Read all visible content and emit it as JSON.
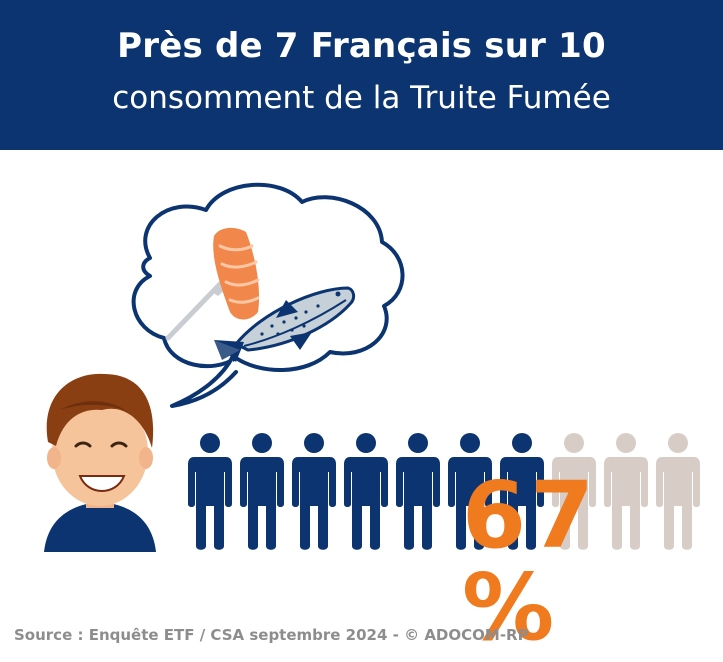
{
  "header": {
    "title": "Près de 7 Français sur 10",
    "subtitle": "consomment de la Truite Fumée"
  },
  "infographic": {
    "percent": "67 %",
    "share": 0.7,
    "people_total": 10,
    "people_highlighted": 7
  },
  "icons": {
    "thought_bubble": "thought-bubble-icon",
    "trout_fillet": "fillet-on-fork-icon",
    "trout": "trout-fish-icon",
    "woman": "smiling-woman-icon",
    "person": "person-icon"
  },
  "colors": {
    "header_bg": "#0b3470",
    "person_active": "#0b3470",
    "person_inactive": "#d8cdc6",
    "percent": "#f07a1e",
    "fillet": "#f2874b",
    "source_text": "#8d8d8d"
  },
  "footer": {
    "source": "Source : Enquête ETF / CSA septembre 2024 - © ADOCOM-RP"
  }
}
